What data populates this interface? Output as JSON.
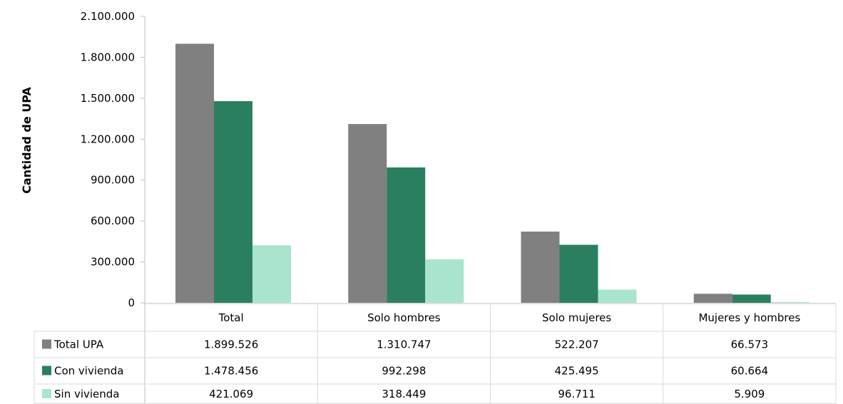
{
  "chart_data": {
    "type": "bar",
    "title": "",
    "ylabel": "Cantidad de UPA",
    "xlabel": "",
    "ylim": [
      0,
      2100000
    ],
    "yticks": [
      0,
      300000,
      600000,
      900000,
      1200000,
      1500000,
      1800000,
      2100000
    ],
    "ytick_labels": [
      "0",
      "300.000",
      "600.000",
      "900.000",
      "1.200.000",
      "1.500.000",
      "1.800.000",
      "2.100.000"
    ],
    "grid": false,
    "legend": "data-table",
    "categories": [
      "Total",
      "Solo hombres",
      "Solo mujeres",
      "Mujeres y hombres"
    ],
    "series": [
      {
        "name": "Total UPA",
        "color": "#808080",
        "values": [
          1899526,
          1310747,
          522207,
          66573
        ],
        "labels": [
          "1.899.526",
          "1.310.747",
          "522.207",
          "66.573"
        ]
      },
      {
        "name": "Con vivienda",
        "color": "#2a7f5f",
        "values": [
          1478456,
          992298,
          425495,
          60664
        ],
        "labels": [
          "1.478.456",
          "992.298",
          "425.495",
          "60.664"
        ]
      },
      {
        "name": "Sin vivienda",
        "color": "#a9e4cc",
        "values": [
          421069,
          318449,
          96711,
          5909
        ],
        "labels": [
          "421.069",
          "318.449",
          "96.711",
          "5.909"
        ]
      }
    ]
  }
}
